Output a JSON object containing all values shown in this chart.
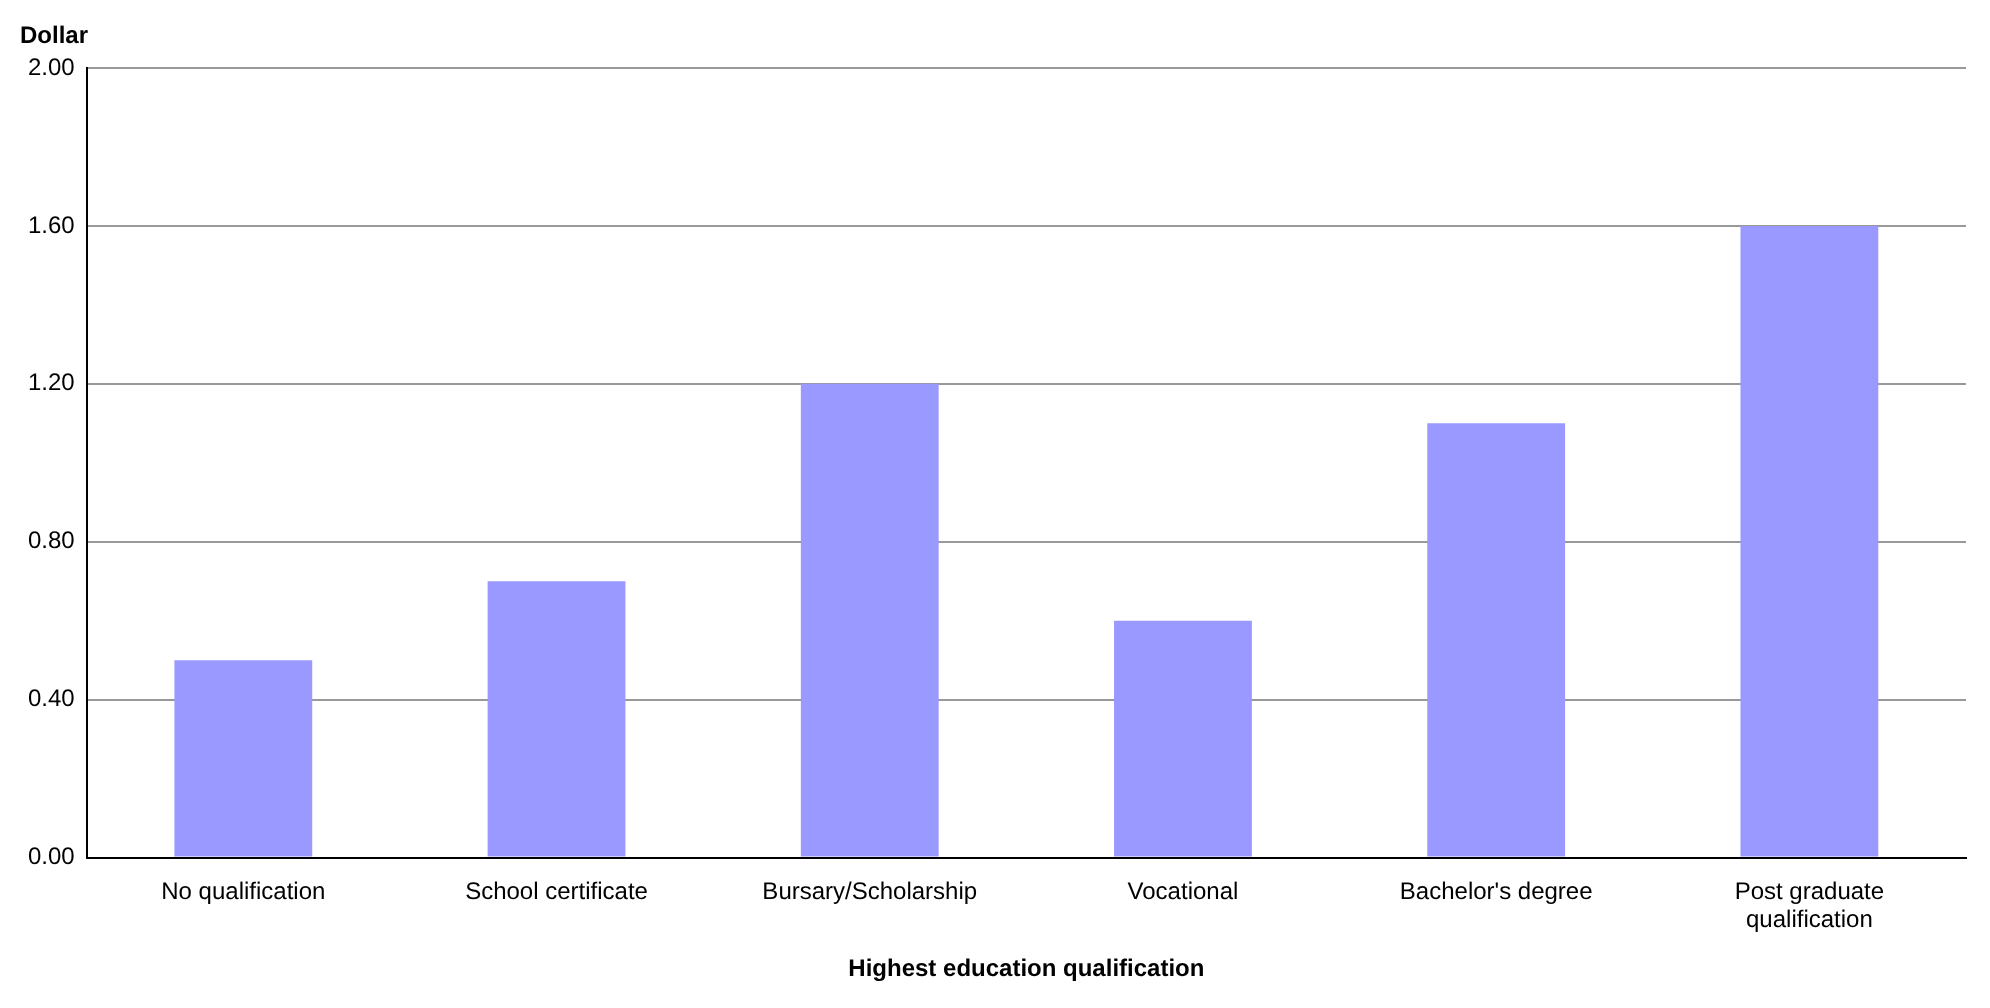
{
  "chart_data": {
    "type": "bar",
    "xlabel": "Highest education qualification",
    "ylabel": "Dollar",
    "categories": [
      "No qualification",
      "School certificate",
      "Bursary/Scholarship",
      "Vocational",
      "Bachelor's degree",
      "Post graduate qualification"
    ],
    "values": [
      0.5,
      0.7,
      1.2,
      0.6,
      1.1,
      1.6
    ],
    "color": "#9999ff",
    "ylim": [
      0,
      2
    ],
    "yticks": [
      {
        "value": 0,
        "label": "0.00"
      },
      {
        "value": 0.4,
        "label": "0.40"
      },
      {
        "value": 0.8,
        "label": "0.80"
      },
      {
        "value": 1.2,
        "label": "1.20"
      },
      {
        "value": 1.6,
        "label": "1.60"
      },
      {
        "value": 2,
        "label": "2.00"
      }
    ],
    "grid": "y",
    "legend": false
  }
}
